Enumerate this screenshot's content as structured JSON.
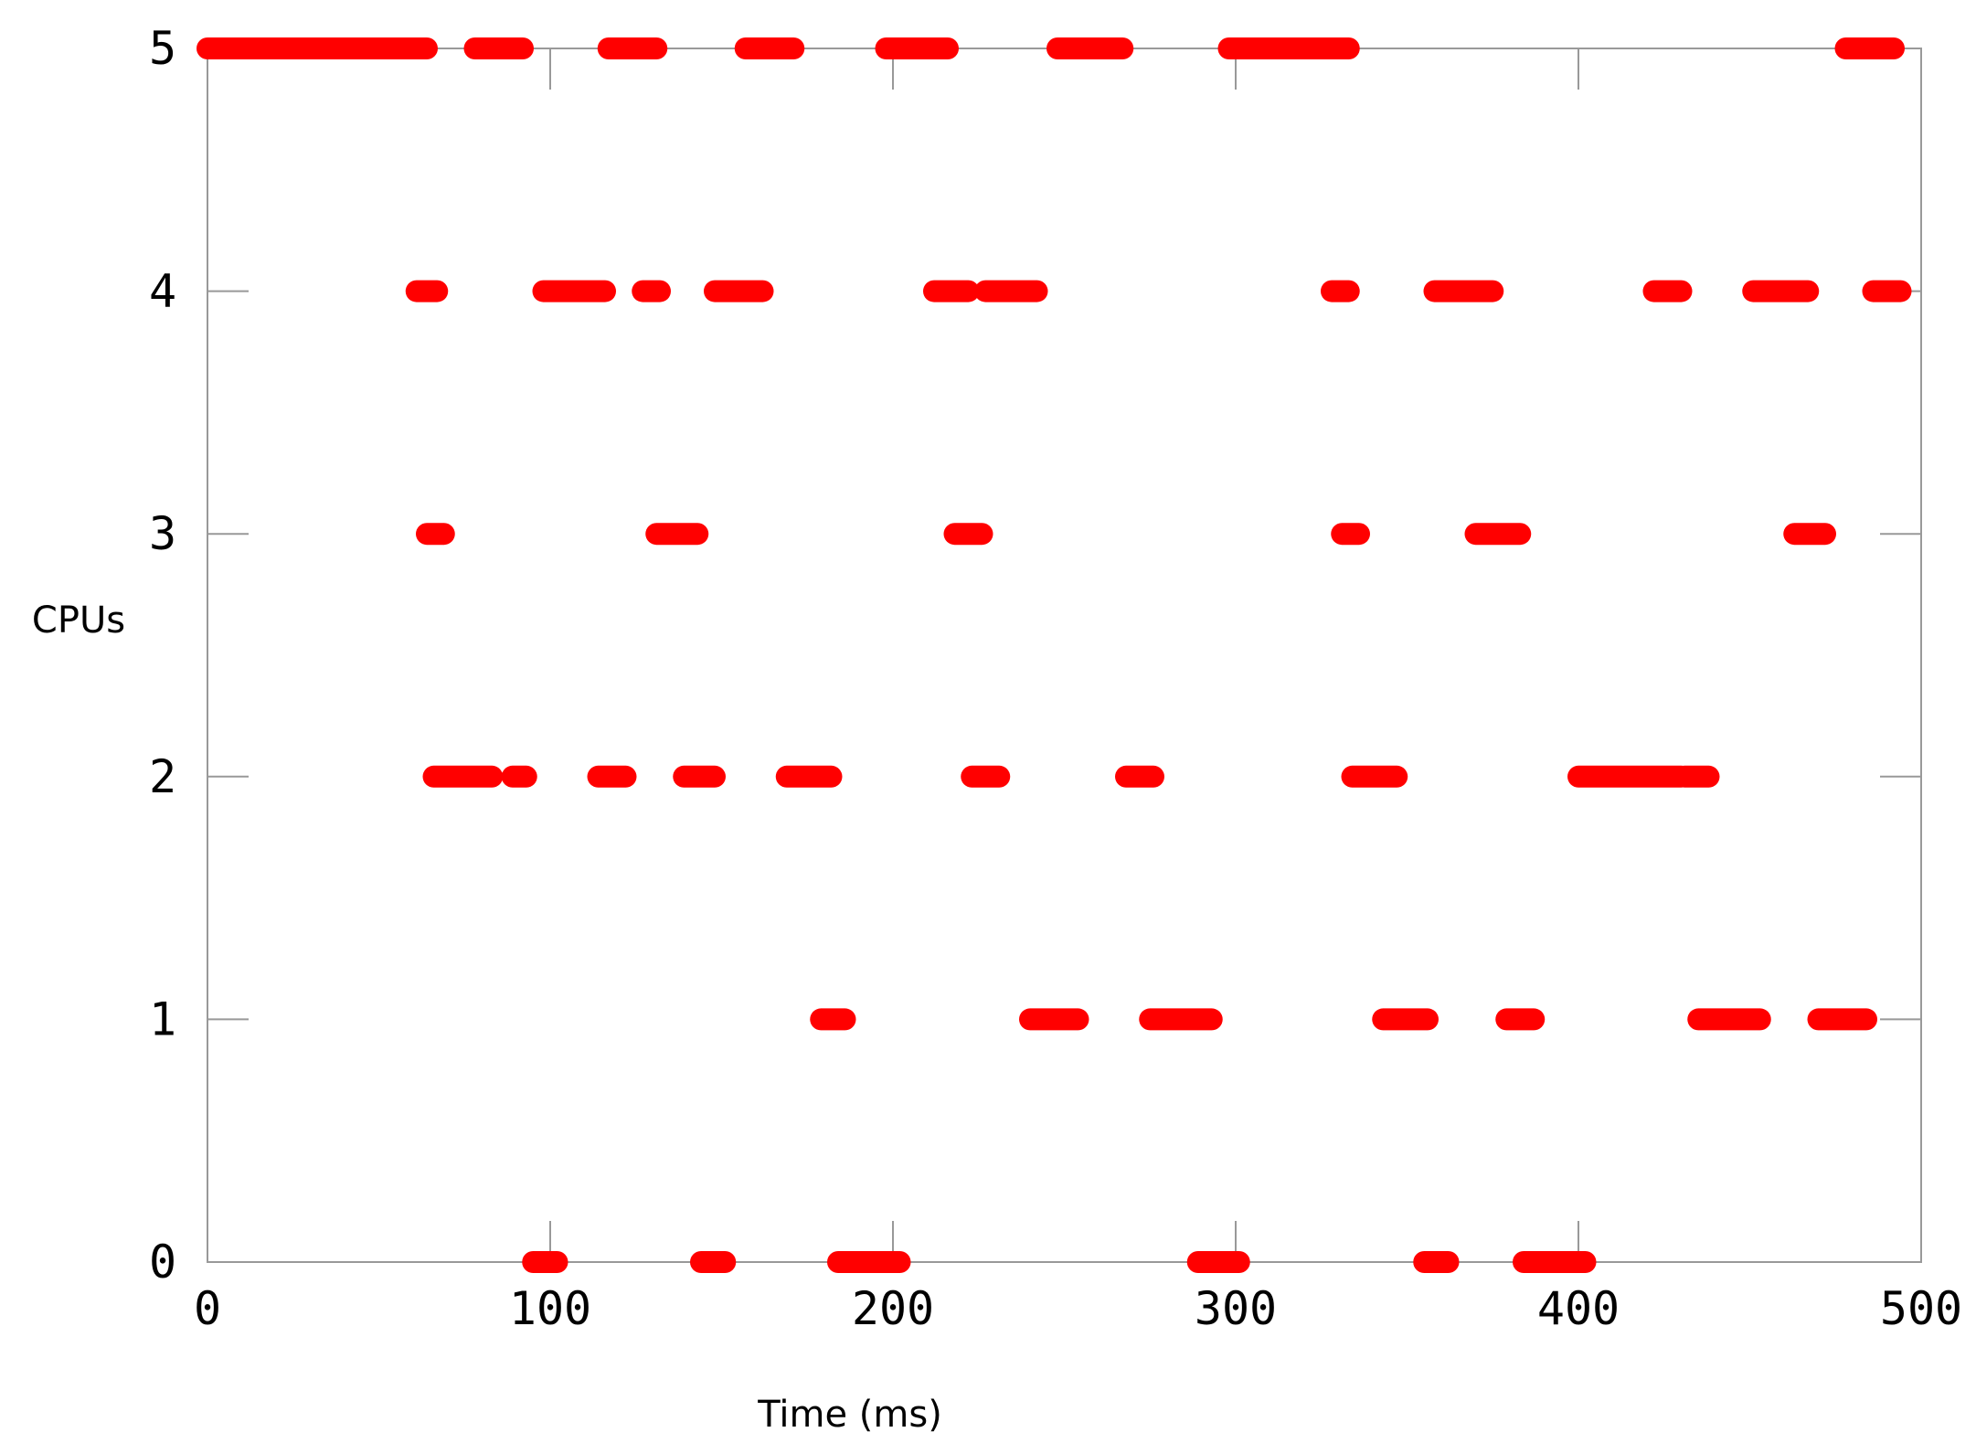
{
  "chart_data": {
    "type": "scatter",
    "title": "",
    "xlabel": "Time (ms)",
    "ylabel": "CPUs",
    "xlim": [
      0,
      500
    ],
    "ylim": [
      0,
      5
    ],
    "xticks": [
      0,
      100,
      200,
      300,
      400,
      500
    ],
    "yticks": [
      0,
      1,
      2,
      3,
      4,
      5
    ],
    "grid": false,
    "marker_color": "#ff0000",
    "series": [
      {
        "cpu": 0,
        "intervals": [
          [
            95,
            102
          ],
          [
            144,
            151
          ],
          [
            184,
            202
          ],
          [
            289,
            301
          ],
          [
            355,
            362
          ],
          [
            384,
            402
          ]
        ]
      },
      {
        "cpu": 1,
        "intervals": [
          [
            179,
            186
          ],
          [
            240,
            254
          ],
          [
            275,
            293
          ],
          [
            343,
            356
          ],
          [
            379,
            387
          ],
          [
            435,
            453
          ],
          [
            470,
            484
          ]
        ]
      },
      {
        "cpu": 2,
        "intervals": [
          [
            66,
            83
          ],
          [
            89,
            93
          ],
          [
            114,
            122
          ],
          [
            139,
            148
          ],
          [
            169,
            182
          ],
          [
            223,
            231
          ],
          [
            268,
            276
          ],
          [
            334,
            347
          ],
          [
            400,
            430
          ],
          [
            431,
            438
          ]
        ]
      },
      {
        "cpu": 3,
        "intervals": [
          [
            64,
            69
          ],
          [
            131,
            143
          ],
          [
            218,
            226
          ],
          [
            331,
            336
          ],
          [
            370,
            383
          ],
          [
            463,
            472
          ]
        ]
      },
      {
        "cpu": 4,
        "intervals": [
          [
            61,
            67
          ],
          [
            98,
            116
          ],
          [
            127,
            132
          ],
          [
            148,
            162
          ],
          [
            212,
            222
          ],
          [
            227,
            242
          ],
          [
            328,
            333
          ],
          [
            358,
            375
          ],
          [
            422,
            430
          ],
          [
            451,
            467
          ],
          [
            486,
            494
          ]
        ]
      },
      {
        "cpu": 5,
        "intervals": [
          [
            0,
            64
          ],
          [
            78,
            92
          ],
          [
            117,
            131
          ],
          [
            157,
            171
          ],
          [
            198,
            216
          ],
          [
            248,
            267
          ],
          [
            298,
            333
          ],
          [
            478,
            492
          ]
        ]
      }
    ]
  }
}
